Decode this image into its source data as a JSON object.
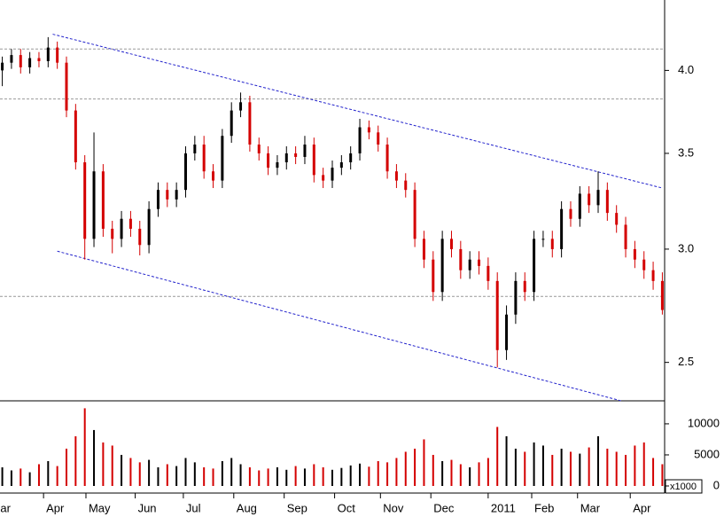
{
  "chart_data": [
    {
      "type": "candlestick",
      "yscale": "log",
      "x": [
        1,
        5,
        9,
        13,
        17,
        21,
        25,
        29,
        33,
        37,
        41,
        45,
        49,
        53,
        57,
        61,
        65,
        69,
        73,
        77,
        81,
        85,
        89,
        93,
        97,
        101,
        105,
        109,
        113,
        117,
        121,
        125,
        129,
        133,
        137,
        141,
        145,
        149,
        153,
        157,
        161,
        165,
        169,
        173,
        177,
        181,
        185,
        189,
        193,
        197,
        201,
        205,
        209,
        213,
        217,
        221,
        225,
        229,
        233,
        237,
        241,
        245,
        249,
        253,
        257,
        261,
        265,
        269,
        273,
        277,
        281,
        285,
        289
      ],
      "open": [
        4.0,
        4.05,
        4.1,
        4.02,
        4.08,
        4.06,
        4.15,
        4.05,
        3.75,
        3.45,
        3.05,
        3.4,
        3.1,
        3.05,
        3.15,
        3.1,
        3.02,
        3.2,
        3.3,
        3.25,
        3.3,
        3.5,
        3.55,
        3.4,
        3.35,
        3.6,
        3.75,
        3.8,
        3.55,
        3.5,
        3.42,
        3.45,
        3.5,
        3.48,
        3.55,
        3.38,
        3.35,
        3.42,
        3.45,
        3.5,
        3.65,
        3.62,
        3.55,
        3.4,
        3.35,
        3.3,
        3.05,
        2.95,
        2.8,
        3.05,
        3.0,
        2.9,
        2.95,
        2.92,
        2.85,
        2.55,
        2.7,
        2.85,
        2.8,
        3.05,
        3.05,
        3.0,
        3.2,
        3.15,
        3.28,
        3.22,
        3.3,
        3.18,
        3.12,
        3.0,
        2.95,
        2.9,
        2.85
      ],
      "high": [
        4.09,
        4.14,
        4.14,
        4.12,
        4.12,
        4.22,
        4.19,
        4.09,
        3.79,
        3.49,
        3.62,
        3.44,
        3.14,
        3.19,
        3.19,
        3.14,
        3.24,
        3.34,
        3.34,
        3.34,
        3.54,
        3.6,
        3.6,
        3.44,
        3.64,
        3.8,
        3.86,
        3.84,
        3.59,
        3.54,
        3.49,
        3.54,
        3.54,
        3.6,
        3.59,
        3.42,
        3.46,
        3.49,
        3.54,
        3.7,
        3.69,
        3.66,
        3.59,
        3.44,
        3.39,
        3.34,
        3.09,
        2.99,
        3.09,
        3.09,
        3.04,
        2.99,
        2.99,
        2.96,
        2.89,
        2.74,
        2.89,
        2.89,
        3.09,
        3.09,
        3.09,
        3.24,
        3.24,
        3.32,
        3.32,
        3.4,
        3.34,
        3.22,
        3.16,
        3.04,
        2.99,
        2.94,
        2.89
      ],
      "low": [
        3.9,
        4.01,
        3.98,
        3.98,
        4.02,
        4.02,
        4.01,
        3.71,
        3.41,
        2.95,
        3.01,
        3.06,
        2.98,
        3.01,
        3.06,
        2.97,
        2.98,
        3.16,
        3.21,
        3.21,
        3.26,
        3.46,
        3.36,
        3.31,
        3.31,
        3.56,
        3.71,
        3.51,
        3.46,
        3.38,
        3.38,
        3.41,
        3.44,
        3.44,
        3.34,
        3.31,
        3.31,
        3.38,
        3.41,
        3.46,
        3.58,
        3.51,
        3.36,
        3.31,
        3.26,
        3.01,
        2.91,
        2.76,
        2.76,
        2.96,
        2.86,
        2.86,
        2.88,
        2.81,
        2.48,
        2.51,
        2.66,
        2.76,
        2.76,
        3.01,
        2.96,
        2.96,
        3.11,
        3.11,
        3.18,
        3.18,
        3.14,
        3.08,
        2.96,
        2.91,
        2.86,
        2.81,
        2.7
      ],
      "close": [
        4.05,
        4.1,
        4.02,
        4.08,
        4.06,
        4.15,
        4.05,
        3.75,
        3.45,
        3.05,
        3.4,
        3.1,
        3.05,
        3.15,
        3.1,
        3.02,
        3.2,
        3.3,
        3.25,
        3.3,
        3.5,
        3.55,
        3.4,
        3.35,
        3.6,
        3.75,
        3.8,
        3.55,
        3.5,
        3.42,
        3.45,
        3.5,
        3.48,
        3.55,
        3.38,
        3.35,
        3.42,
        3.45,
        3.5,
        3.65,
        3.62,
        3.55,
        3.4,
        3.35,
        3.3,
        3.05,
        2.95,
        2.8,
        3.05,
        3.0,
        2.9,
        2.95,
        2.92,
        2.85,
        2.55,
        2.7,
        2.85,
        2.8,
        3.05,
        3.05,
        3.0,
        3.2,
        3.15,
        3.28,
        3.22,
        3.3,
        3.18,
        3.12,
        3.0,
        2.95,
        2.9,
        2.85,
        2.72
      ],
      "up_color": "#000000",
      "down_color": "#d40000",
      "xlim": [
        0,
        290
      ],
      "ylim": [
        2.35,
        4.48
      ],
      "yticks": [
        2.5,
        {
          "value": 3.0,
          "label": "3.0"
        },
        3.5,
        {
          "value": 4.0,
          "label": "4.0"
        }
      ],
      "hlines": [
        4.14,
        3.82,
        2.78
      ],
      "hline_color": "#999999",
      "trendlines": [
        {
          "x": [
            23,
            289
          ],
          "y": [
            4.24,
            3.31
          ]
        },
        {
          "x": [
            25,
            271
          ],
          "y": [
            2.99,
            2.35
          ]
        }
      ],
      "trendline_color": "#2222cc"
    },
    {
      "type": "volume",
      "x": [
        1,
        5,
        9,
        13,
        17,
        21,
        25,
        29,
        33,
        37,
        41,
        45,
        49,
        53,
        57,
        61,
        65,
        69,
        73,
        77,
        81,
        85,
        89,
        93,
        97,
        101,
        105,
        109,
        113,
        117,
        121,
        125,
        129,
        133,
        137,
        141,
        145,
        149,
        153,
        157,
        161,
        165,
        169,
        173,
        177,
        181,
        185,
        189,
        193,
        197,
        201,
        205,
        209,
        213,
        217,
        221,
        225,
        229,
        233,
        237,
        241,
        245,
        249,
        253,
        257,
        261,
        265,
        269,
        273,
        277,
        281,
        285,
        289
      ],
      "values": [
        3000,
        2500,
        2800,
        2200,
        3500,
        4000,
        3200,
        6000,
        8000,
        12500,
        9000,
        7000,
        6500,
        5000,
        4500,
        3800,
        4200,
        3000,
        3500,
        3200,
        4500,
        3800,
        3000,
        2800,
        4000,
        4500,
        3500,
        3000,
        2500,
        2800,
        3000,
        2600,
        3200,
        2800,
        3500,
        3000,
        2600,
        2900,
        3300,
        3600,
        3100,
        4000,
        3800,
        4500,
        5500,
        6000,
        7500,
        5000,
        4000,
        4200,
        3500,
        3000,
        3800,
        4500,
        9500,
        8000,
        6000,
        5500,
        7000,
        6500,
        5000,
        6000,
        5500,
        5200,
        6200,
        8000,
        6000,
        5500,
        5000,
        6500,
        7000,
        4500,
        3500
      ],
      "xlim": [
        0,
        290
      ],
      "ylim": [
        0,
        13700
      ],
      "yticks": [
        0,
        5000,
        10000
      ],
      "unit_label": "x1000",
      "xticks": [
        {
          "value": -1,
          "label": "ar"
        },
        {
          "value": 19,
          "label": "Apr"
        },
        {
          "value": 37.5,
          "label": "May"
        },
        {
          "value": 59,
          "label": "Jun"
        },
        {
          "value": 80,
          "label": "Jul"
        },
        {
          "value": 102,
          "label": "Aug"
        },
        {
          "value": 124,
          "label": "Sep"
        },
        {
          "value": 146,
          "label": "Oct"
        },
        {
          "value": 166,
          "label": "Nov"
        },
        {
          "value": 188,
          "label": "Dec"
        },
        {
          "value": 213,
          "label": "2011"
        },
        {
          "value": 232,
          "label": "Feb"
        },
        {
          "value": 252,
          "label": "Mar"
        },
        {
          "value": 275,
          "label": "Apr"
        }
      ]
    }
  ]
}
